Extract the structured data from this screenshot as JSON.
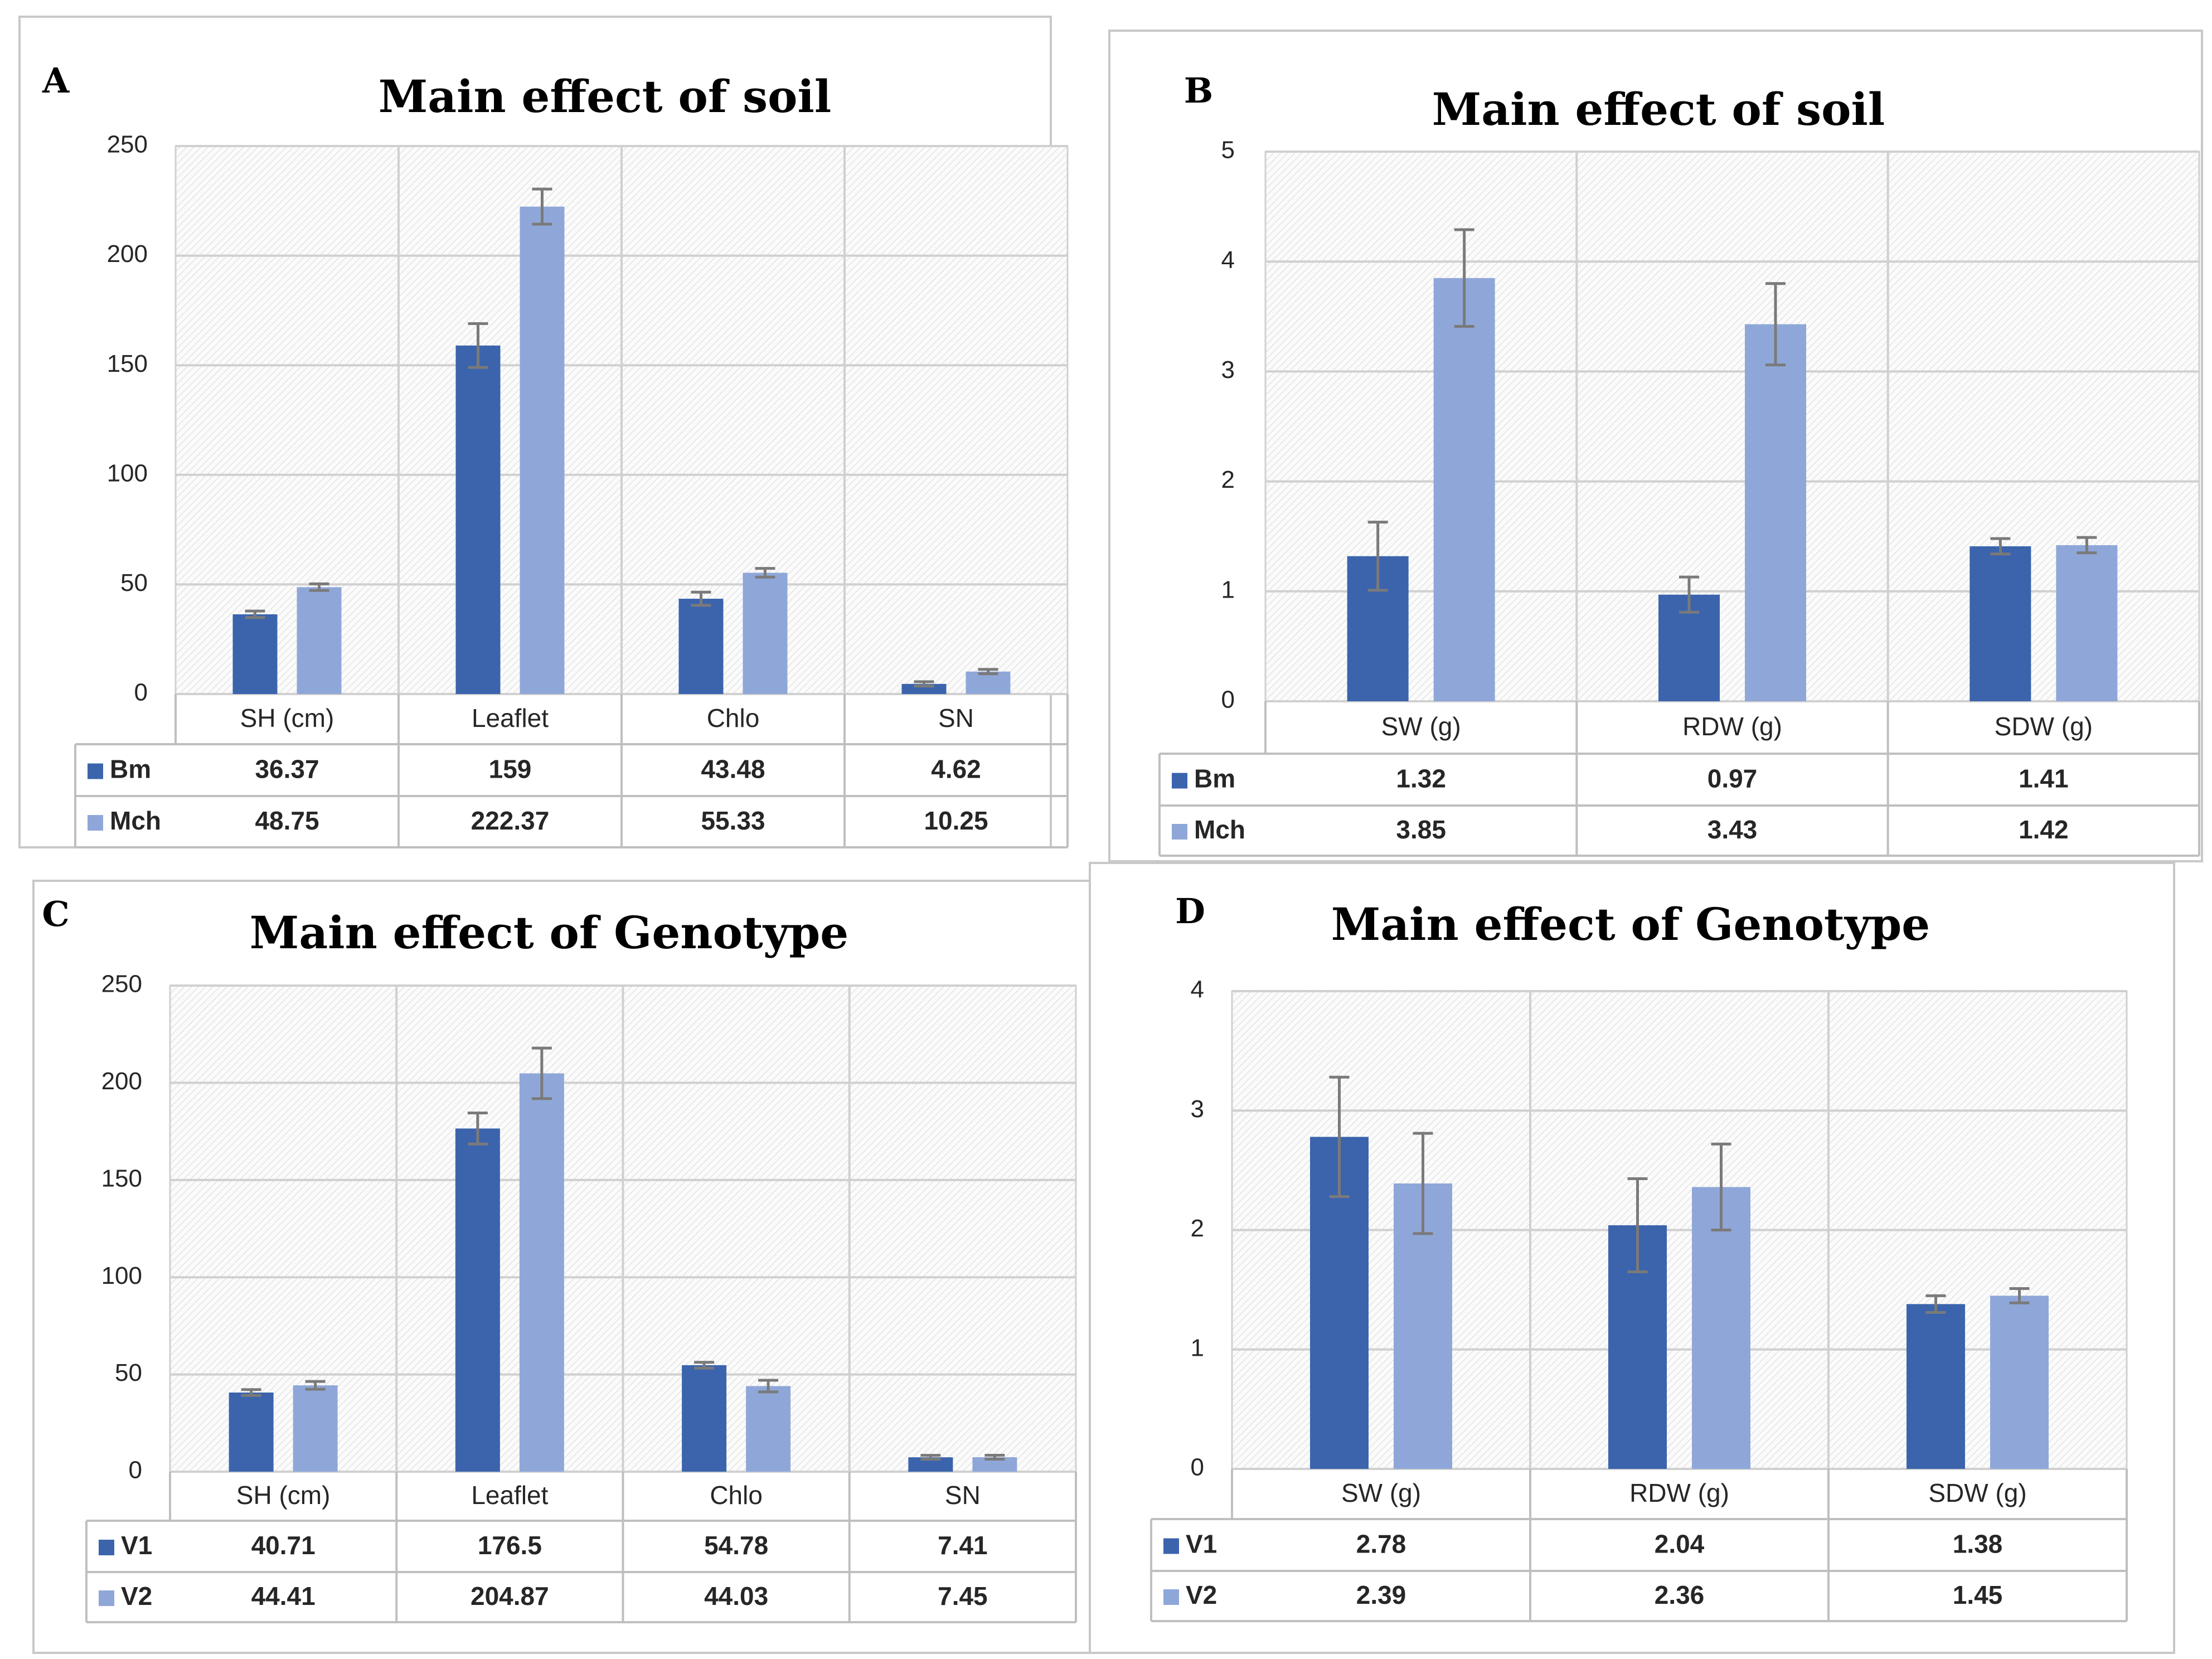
{
  "colors": {
    "series1": "#3b64ad",
    "series2": "#8fa7d8",
    "error_bar": "#7a7a7a",
    "grid": "#d0d0d0",
    "table_border": "#bfbfbf",
    "frame": "#c8c8c8"
  },
  "chart_data": [
    {
      "panel": "A",
      "type": "bar",
      "title": "Main effect of soil",
      "categories": [
        "SH (cm)",
        "Leaflet",
        "Chlo",
        "SN"
      ],
      "ylim": [
        0,
        250
      ],
      "yticks": [
        "0",
        "50",
        "100",
        "150",
        "200",
        "250"
      ],
      "series": [
        {
          "name": "Bm",
          "values": [
            36.37,
            159,
            43.48,
            4.62
          ],
          "labels": [
            "36.37",
            "159",
            "43.48",
            "4.62"
          ],
          "errors": [
            1.5,
            10,
            3,
            1
          ]
        },
        {
          "name": "Mch",
          "values": [
            48.75,
            222.37,
            55.33,
            10.25
          ],
          "labels": [
            "48.75",
            "222.37",
            "55.33",
            "10.25"
          ],
          "errors": [
            1.5,
            8,
            2,
            1
          ]
        }
      ]
    },
    {
      "panel": "B",
      "type": "bar",
      "title": "Main effect of soil",
      "categories": [
        "SW (g)",
        "RDW (g)",
        "SDW (g)"
      ],
      "ylim": [
        0,
        5
      ],
      "yticks": [
        "0",
        "1",
        "2",
        "3",
        "4",
        "5"
      ],
      "series": [
        {
          "name": "Bm",
          "values": [
            1.32,
            0.97,
            1.41
          ],
          "labels": [
            "1.32",
            "0.97",
            "1.41"
          ],
          "errors": [
            0.31,
            0.16,
            0.07
          ]
        },
        {
          "name": "Mch",
          "values": [
            3.85,
            3.43,
            1.42
          ],
          "labels": [
            "3.85",
            "3.43",
            "1.42"
          ],
          "errors": [
            0.44,
            0.37,
            0.07
          ]
        }
      ]
    },
    {
      "panel": "C",
      "type": "bar",
      "title": "Main effect of Genotype",
      "categories": [
        "SH (cm)",
        "Leaflet",
        "Chlo",
        "SN"
      ],
      "ylim": [
        0,
        250
      ],
      "yticks": [
        "0",
        "50",
        "100",
        "150",
        "200",
        "250"
      ],
      "series": [
        {
          "name": "V1",
          "values": [
            40.71,
            176.5,
            54.78,
            7.41
          ],
          "labels": [
            "40.71",
            "176.5",
            "54.78",
            "7.41"
          ],
          "errors": [
            1.5,
            8,
            1.5,
            1
          ]
        },
        {
          "name": "V2",
          "values": [
            44.41,
            204.87,
            44.03,
            7.45
          ],
          "labels": [
            "44.41",
            "204.87",
            "44.03",
            "7.45"
          ],
          "errors": [
            2,
            13,
            3,
            1
          ]
        }
      ]
    },
    {
      "panel": "D",
      "type": "bar",
      "title": "Main effect of Genotype",
      "categories": [
        "SW (g)",
        "RDW (g)",
        "SDW (g)"
      ],
      "ylim": [
        0,
        4
      ],
      "yticks": [
        "0",
        "1",
        "2",
        "3",
        "4"
      ],
      "series": [
        {
          "name": "V1",
          "values": [
            2.78,
            2.04,
            1.38
          ],
          "labels": [
            "2.78",
            "2.04",
            "1.38"
          ],
          "errors": [
            0.5,
            0.39,
            0.07
          ]
        },
        {
          "name": "V2",
          "values": [
            2.39,
            2.36,
            1.45
          ],
          "labels": [
            "2.39",
            "2.36",
            "1.45"
          ],
          "errors": [
            0.42,
            0.36,
            0.06
          ]
        }
      ]
    }
  ]
}
